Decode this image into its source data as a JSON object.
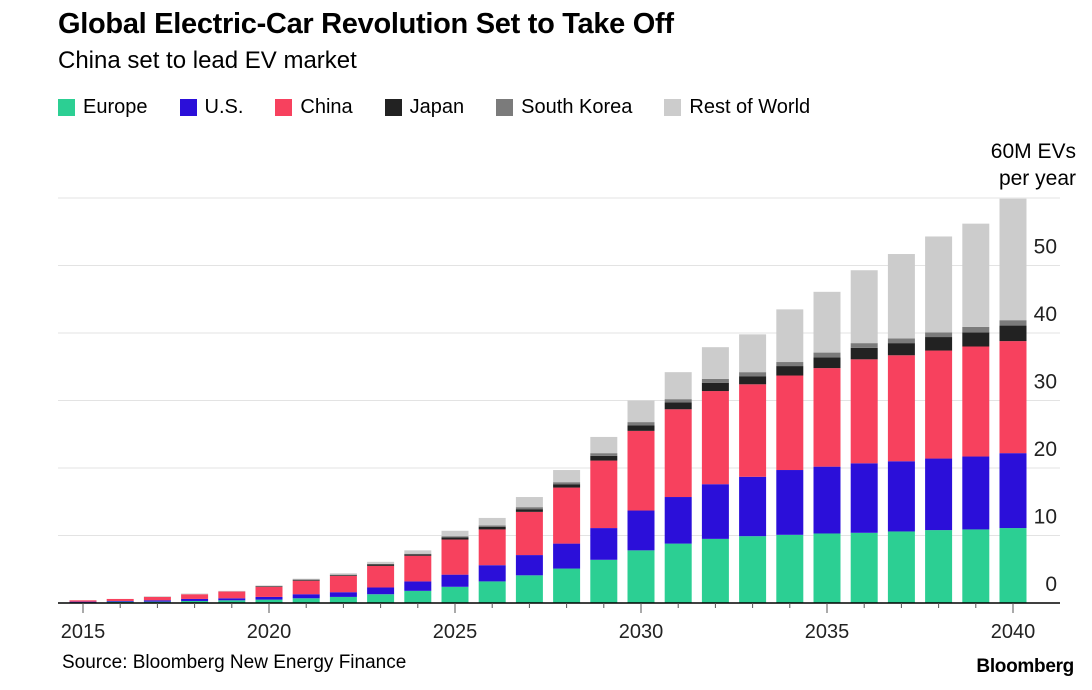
{
  "header": {
    "title": "Global Electric-Car Revolution Set to Take Off",
    "subtitle": "China set to lead EV market"
  },
  "legend": [
    {
      "label": "Europe",
      "color": "#2ccf93"
    },
    {
      "label": "U.S.",
      "color": "#2b0fd9"
    },
    {
      "label": "China",
      "color": "#f7415e"
    },
    {
      "label": "Japan",
      "color": "#222222"
    },
    {
      "label": "South Korea",
      "color": "#7b7b7b"
    },
    {
      "label": "Rest of World",
      "color": "#cccccc"
    }
  ],
  "axis": {
    "unit_line1": "60M EVs",
    "unit_line2": "per year"
  },
  "footer": {
    "source": "Source: Bloomberg New Energy Finance",
    "brand": "Bloomberg"
  },
  "chart_data": {
    "type": "bar",
    "stacked": true,
    "title": "Global Electric-Car Revolution Set to Take Off",
    "subtitle": "China set to lead EV market",
    "ylim": [
      0,
      60
    ],
    "yticks": [
      0,
      10,
      20,
      30,
      40,
      50
    ],
    "xticks": [
      2015,
      2020,
      2025,
      2030,
      2035,
      2040
    ],
    "grid": true,
    "legend_position": "top",
    "categories": [
      2015,
      2016,
      2017,
      2018,
      2019,
      2020,
      2021,
      2022,
      2023,
      2024,
      2025,
      2026,
      2027,
      2028,
      2029,
      2030,
      2031,
      2032,
      2033,
      2034,
      2035,
      2036,
      2037,
      2038,
      2039,
      2040
    ],
    "series": [
      {
        "name": "Europe",
        "color": "#2ccf93",
        "values": [
          0.1,
          0.2,
          0.2,
          0.3,
          0.4,
          0.5,
          0.7,
          0.9,
          1.3,
          1.8,
          2.4,
          3.2,
          4.1,
          5.1,
          6.4,
          7.8,
          8.8,
          9.5,
          9.9,
          10.1,
          10.3,
          10.4,
          10.6,
          10.8,
          10.9,
          11.1
        ]
      },
      {
        "name": "U.S.",
        "color": "#2b0fd9",
        "values": [
          0.1,
          0.1,
          0.2,
          0.3,
          0.3,
          0.4,
          0.6,
          0.7,
          1.0,
          1.4,
          1.8,
          2.4,
          3.0,
          3.7,
          4.7,
          5.9,
          6.9,
          8.1,
          8.8,
          9.6,
          9.9,
          10.3,
          10.4,
          10.6,
          10.8,
          11.1
        ]
      },
      {
        "name": "China",
        "color": "#f7415e",
        "values": [
          0.2,
          0.3,
          0.5,
          0.7,
          1.0,
          1.5,
          2.0,
          2.4,
          3.2,
          3.8,
          5.2,
          5.3,
          6.4,
          8.3,
          10.0,
          11.8,
          13.0,
          13.8,
          13.7,
          14.0,
          14.6,
          15.4,
          15.7,
          16.0,
          16.3,
          16.6
        ]
      },
      {
        "name": "Japan",
        "color": "#222222",
        "values": [
          0.0,
          0.0,
          0.0,
          0.0,
          0.0,
          0.1,
          0.1,
          0.1,
          0.2,
          0.2,
          0.3,
          0.4,
          0.4,
          0.5,
          0.7,
          0.8,
          1.0,
          1.2,
          1.2,
          1.4,
          1.6,
          1.7,
          1.8,
          2.0,
          2.1,
          2.3
        ]
      },
      {
        "name": "South Korea",
        "color": "#7b7b7b",
        "values": [
          0.0,
          0.0,
          0.0,
          0.0,
          0.0,
          0.0,
          0.1,
          0.1,
          0.1,
          0.1,
          0.2,
          0.2,
          0.3,
          0.3,
          0.4,
          0.5,
          0.5,
          0.6,
          0.6,
          0.6,
          0.7,
          0.7,
          0.7,
          0.7,
          0.8,
          0.8
        ]
      },
      {
        "name": "Rest of World",
        "color": "#cccccc",
        "values": [
          0.0,
          0.0,
          0.1,
          0.1,
          0.1,
          0.1,
          0.1,
          0.2,
          0.3,
          0.5,
          0.8,
          1.1,
          1.5,
          1.8,
          2.4,
          3.2,
          4.0,
          4.7,
          5.6,
          7.8,
          9.0,
          10.8,
          12.5,
          14.2,
          15.3,
          18.0
        ]
      }
    ]
  }
}
